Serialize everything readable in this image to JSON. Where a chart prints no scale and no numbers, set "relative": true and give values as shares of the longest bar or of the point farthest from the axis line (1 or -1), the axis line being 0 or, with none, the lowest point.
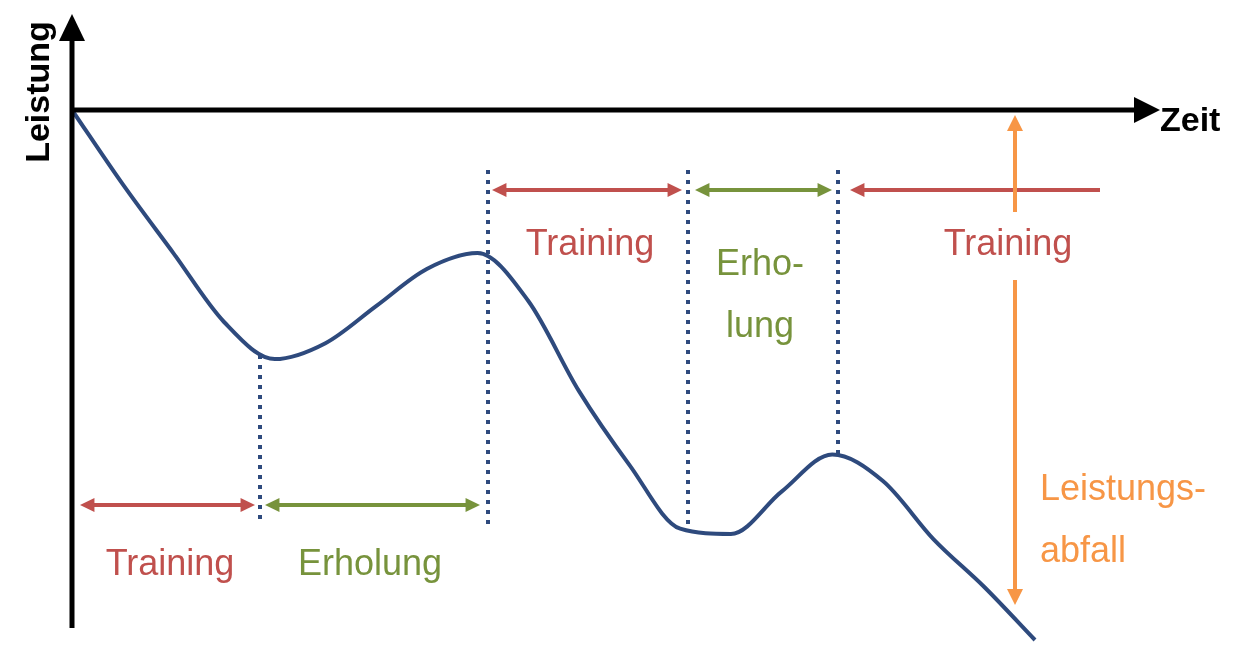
{
  "chart_data": {
    "type": "line",
    "relative": true,
    "xlabel": "Zeit",
    "ylabel": "Leistung",
    "categories": [
      null,
      null,
      null,
      null,
      null,
      null,
      null,
      null,
      null,
      null,
      null,
      null,
      null,
      null,
      null,
      null,
      null,
      null,
      null,
      null
    ],
    "values": [
      0,
      -0.14,
      -0.27,
      -0.4,
      -0.47,
      -0.44,
      -0.37,
      -0.3,
      -0.27,
      -0.36,
      -0.53,
      -0.67,
      -0.79,
      -0.8,
      -0.72,
      -0.65,
      -0.7,
      -0.81,
      -0.9,
      -1
    ],
    "color": "#2e4a7d",
    "marker": "none",
    "line_style": "solid",
    "legend": false,
    "annotations": [
      "Training",
      "Erholung",
      "Training",
      "Erho-\nlung",
      "Training",
      "Leistungs-\nabfall"
    ]
  }
}
